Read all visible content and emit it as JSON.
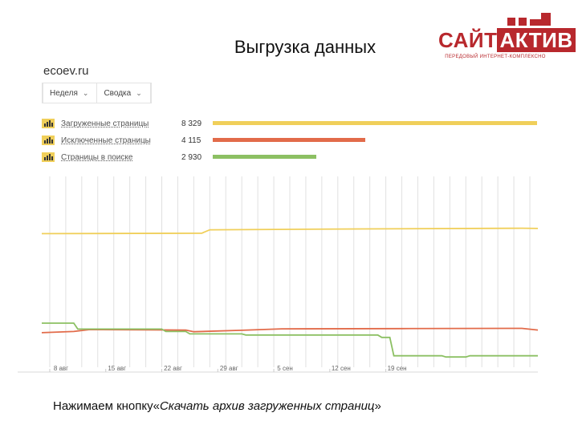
{
  "slide": {
    "title": "Выгрузка данных",
    "caption_prefix": "Нажимаем кнопку«",
    "caption_quote": "Скачать архив загруженных страниц",
    "caption_suffix": "»"
  },
  "logo": {
    "part1": "САЙТ",
    "part2": "АКТИВ",
    "subtitle": "ПЕРЕДОВЫЙ ИНТЕРНЕТ-КОМПЛЕКСНО"
  },
  "site": {
    "name": "ecoev.ru"
  },
  "filters": [
    {
      "label": "Неделя"
    },
    {
      "label": "Сводка"
    }
  ],
  "colors": {
    "loaded": "#f0cf5a",
    "excluded": "#e26b4a",
    "in_search": "#8cc063",
    "grid": "#e1e1e1",
    "brand": "#b8282d"
  },
  "metrics": [
    {
      "label": "Загруженные страницы",
      "value": "8 329",
      "color": "#f0cf5a",
      "fraction": 1.0
    },
    {
      "label": "Исключенные страницы",
      "value": "4 115",
      "color": "#e26b4a",
      "fraction": 0.47
    },
    {
      "label": "Страницы в поиске",
      "value": "2 930",
      "color": "#8cc063",
      "fraction": 0.32
    }
  ],
  "chart_data": {
    "type": "line",
    "x_tick_labels": [
      "8 авг",
      "15 авг",
      "22 авг",
      "29 авг",
      "5 сен",
      "12 сен",
      "19 сен"
    ],
    "series": [
      {
        "name": "Загруженные страницы",
        "color": "#f0cf5a",
        "points": [
          [
            0,
            8100
          ],
          [
            20,
            8120
          ],
          [
            21,
            8260
          ],
          [
            40,
            8300
          ],
          [
            60,
            8329
          ],
          [
            62,
            8320
          ]
        ]
      },
      {
        "name": "Исключенные страницы",
        "color": "#e26b4a",
        "points": [
          [
            0,
            3950
          ],
          [
            4,
            4000
          ],
          [
            6,
            4080
          ],
          [
            18,
            4060
          ],
          [
            19,
            3990
          ],
          [
            25,
            4050
          ],
          [
            30,
            4110
          ],
          [
            45,
            4120
          ],
          [
            60,
            4130
          ],
          [
            62,
            4060
          ]
        ]
      },
      {
        "name": "Страницы в поиске",
        "color": "#8cc063",
        "points": [
          [
            0,
            4350
          ],
          [
            4,
            4350
          ],
          [
            4.5,
            4100
          ],
          [
            15,
            4100
          ],
          [
            15.5,
            4000
          ],
          [
            18,
            4000
          ],
          [
            18.5,
            3900
          ],
          [
            25,
            3900
          ],
          [
            25.5,
            3850
          ],
          [
            42,
            3850
          ],
          [
            42.5,
            3750
          ],
          [
            43.5,
            3750
          ],
          [
            44,
            2980
          ],
          [
            50,
            2980
          ],
          [
            50.5,
            2930
          ],
          [
            53,
            2930
          ],
          [
            53.5,
            2980
          ],
          [
            62,
            2980
          ]
        ]
      }
    ],
    "x_range": [
      0,
      62
    ],
    "y_range": [
      2500,
      10500
    ],
    "grid": true
  }
}
